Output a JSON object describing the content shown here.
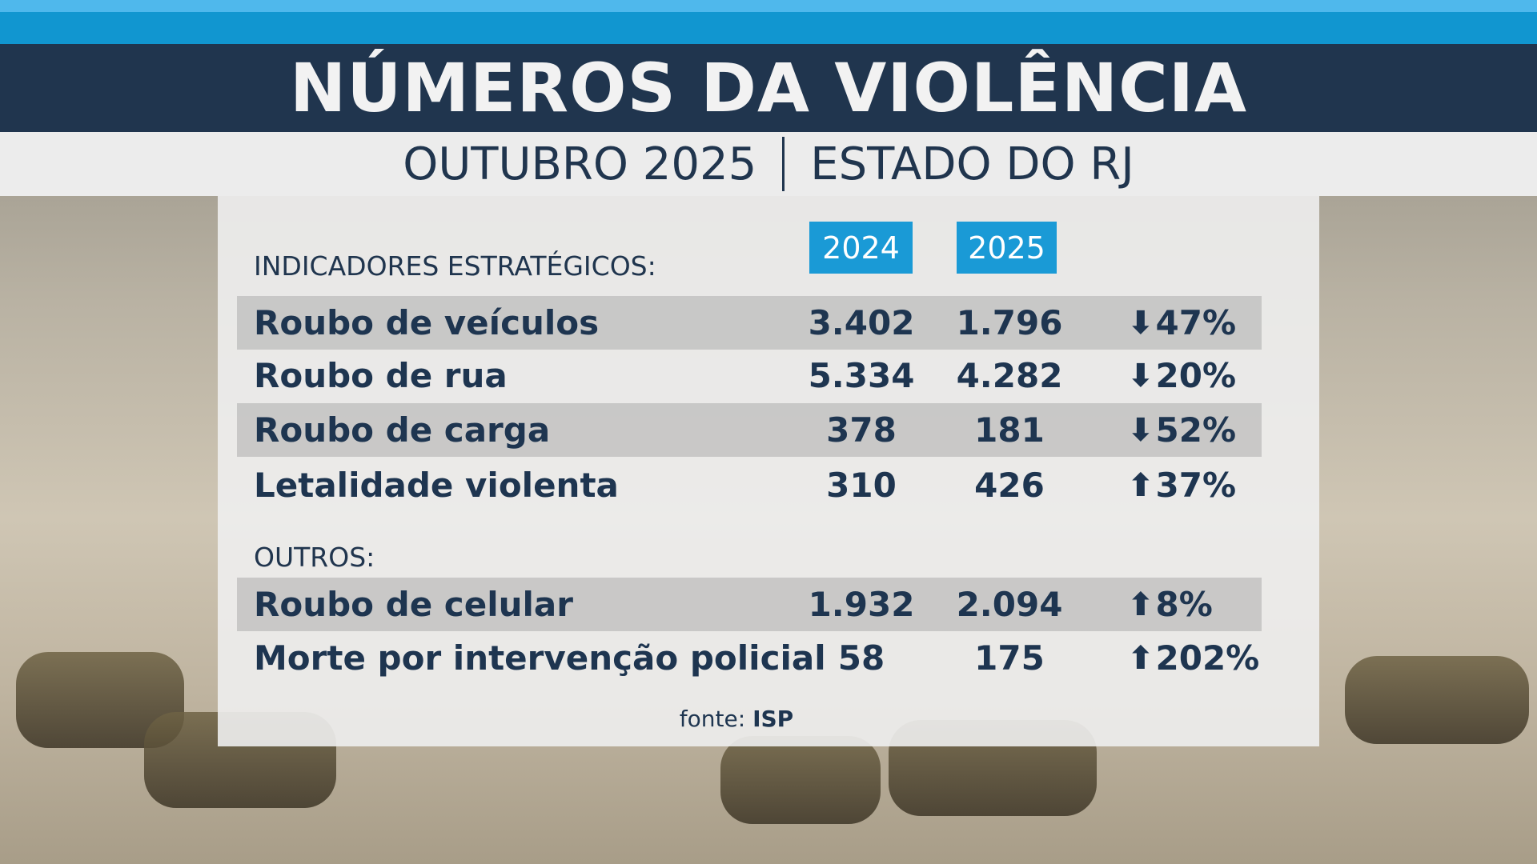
{
  "header": {
    "title": "NÚMEROS DA VIOLÊNCIA",
    "period": "OUTUBRO 2025",
    "region": "ESTADO DO RJ"
  },
  "table": {
    "years": [
      "2024",
      "2025"
    ],
    "section1": "INDICADORES ESTRATÉGICOS:",
    "section2": "OUTROS:",
    "rows": [
      {
        "label": "Roubo de veículos",
        "v2024": "3.402",
        "v2025": "1.796",
        "dir": "down",
        "change": "47%"
      },
      {
        "label": "Roubo de rua",
        "v2024": "5.334",
        "v2025": "4.282",
        "dir": "down",
        "change": "20%"
      },
      {
        "label": "Roubo de carga",
        "v2024": "378",
        "v2025": "181",
        "dir": "down",
        "change": "52%"
      },
      {
        "label": "Letalidade violenta",
        "v2024": "310",
        "v2025": "426",
        "dir": "up",
        "change": "37%"
      },
      {
        "label": "Roubo de celular",
        "v2024": "1.932",
        "v2025": "2.094",
        "dir": "up",
        "change": "8%"
      },
      {
        "label": "Morte por intervenção policial",
        "v2024": "58",
        "v2025": "175",
        "dir": "up",
        "change": "202%"
      }
    ],
    "source_label": "fonte:",
    "source": "ISP"
  },
  "colors": {
    "navy": "#20354e",
    "accent": "#1a9ad6",
    "top": "#4fb8ec"
  }
}
